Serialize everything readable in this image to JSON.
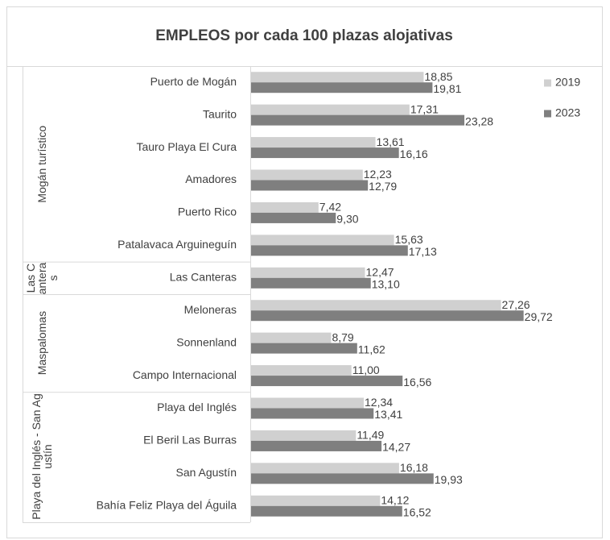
{
  "chart_data": {
    "type": "bar",
    "orientation": "horizontal",
    "title": "EMPLEOS por cada 100 plazas alojativas",
    "groups": [
      {
        "name": "Mogán turístico",
        "categories": [
          "Puerto de Mogán",
          "Taurito",
          "Tauro Playa El Cura",
          "Amadores",
          "Puerto Rico",
          "Patalavaca Arguineguín"
        ]
      },
      {
        "name": "Las Canteras",
        "categories": [
          "Las Canteras"
        ]
      },
      {
        "name": "Maspalomas",
        "categories": [
          "Meloneras",
          "Sonnenland",
          "Campo Internacional"
        ]
      },
      {
        "name": "Playa del Inglés - San Agustín",
        "categories": [
          "Playa del Inglés",
          "El Beril Las Burras",
          "San Agustín",
          "Bahía Feliz Playa del Águila"
        ]
      }
    ],
    "series": [
      {
        "name": "2019",
        "color": "#d0d0d0",
        "values": [
          18.85,
          17.31,
          13.61,
          12.23,
          7.42,
          15.63,
          12.47,
          27.26,
          8.79,
          11.0,
          12.34,
          11.49,
          16.18,
          14.12
        ],
        "value_labels": [
          "18,85",
          "17,31",
          "13,61",
          "12,23",
          "7,42",
          "15,63",
          "12,47",
          "27,26",
          "8,79",
          "11,00",
          "12,34",
          "11,49",
          "16,18",
          "14,12"
        ]
      },
      {
        "name": "2023",
        "color": "#7f7f7f",
        "values": [
          19.81,
          23.28,
          16.16,
          12.79,
          9.3,
          17.13,
          13.1,
          29.72,
          11.62,
          16.56,
          13.41,
          14.27,
          19.93,
          16.52
        ],
        "value_labels": [
          "19,81",
          "23,28",
          "16,16",
          "12,79",
          "9,30",
          "17,13",
          "13,10",
          "29,72",
          "11,62",
          "16,56",
          "13,41",
          "14,27",
          "19,93",
          "16,52"
        ]
      }
    ],
    "xlim": [
      0,
      35
    ],
    "legend": "right"
  }
}
